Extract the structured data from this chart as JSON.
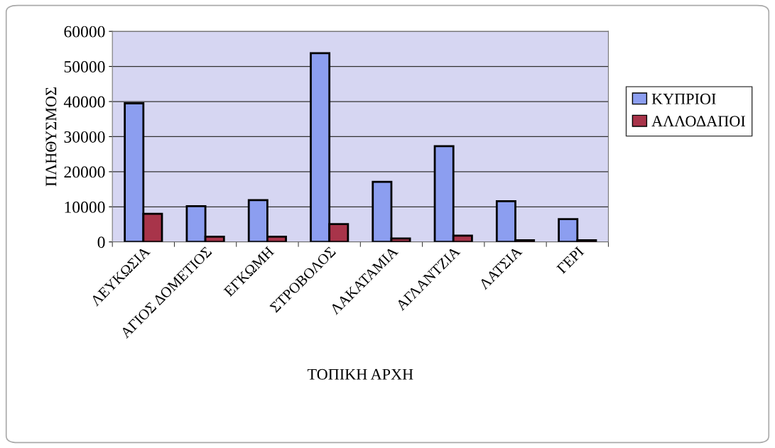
{
  "chart_data": {
    "type": "bar",
    "xlabel": "ΤΟΠΙΚΗ ΑΡΧΗ",
    "ylabel": "ΠΛΗΘΥΣΜΟΣ",
    "categories": [
      "ΛΕΥΚΩΣΙΑ",
      "ΑΓΙΟΣ ΔΟΜΕΤΙΟΣ",
      "ΕΓΚΩΜΗ",
      "ΣΤΡΟΒΟΛΟΣ",
      "ΛΑΚΑΤΑΜΙΑ",
      "ΑΓΛΑΝΤΖΙΑ",
      "ΛΑΤΣΙΑ",
      "ΓΕΡΙ"
    ],
    "series": [
      {
        "name": "ΚΥΠΡΙΟΙ",
        "color": "#8c9ef0",
        "values": [
          39500,
          10200,
          11900,
          53800,
          17100,
          27300,
          11600,
          6500
        ]
      },
      {
        "name": "ΑΛΛΟΔΑΠΟΙ",
        "color": "#a8344a",
        "values": [
          8000,
          1500,
          1500,
          5100,
          1000,
          1800,
          500,
          500
        ]
      }
    ],
    "ylim": [
      0,
      60000
    ],
    "yticks": [
      0,
      10000,
      20000,
      30000,
      40000,
      50000,
      60000
    ],
    "grid": "y",
    "legend": "right"
  }
}
